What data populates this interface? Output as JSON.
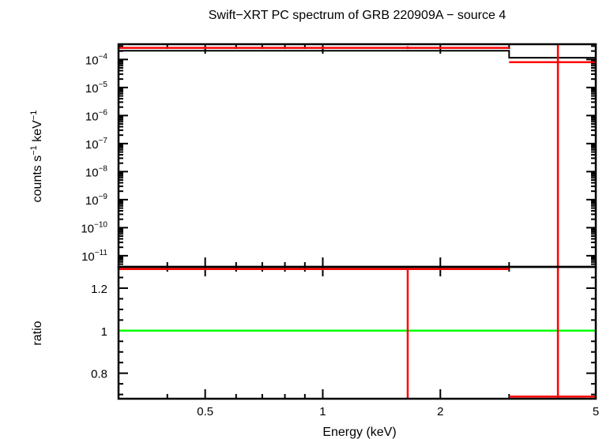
{
  "chart_data": {
    "type": "line",
    "title": "Swift−XRT PC spectrum of GRB 220909A − source 4",
    "xlabel": "Energy (keV)",
    "x_scale": "log",
    "xlim": [
      0.3,
      5
    ],
    "x_ticks": [
      "0.5",
      "1",
      "2",
      "5"
    ],
    "panels": [
      {
        "id": "spectrum",
        "ylabel_parts": [
          "counts s",
          "−1",
          " keV",
          "−1"
        ],
        "y_scale": "log",
        "ylim": [
          4e-12,
          0.00035
        ],
        "y_ticks": [
          {
            "value": 0.0001,
            "base": "10",
            "exp": "−4"
          },
          {
            "value": 1e-05,
            "base": "10",
            "exp": "−5"
          },
          {
            "value": 1e-06,
            "base": "10",
            "exp": "−6"
          },
          {
            "value": 1e-07,
            "base": "10",
            "exp": "−7"
          },
          {
            "value": 1e-08,
            "base": "10",
            "exp": "−8"
          },
          {
            "value": 1e-09,
            "base": "10",
            "exp": "−9"
          },
          {
            "value": 1e-10,
            "base": "10",
            "exp": "−10"
          },
          {
            "value": 1e-11,
            "base": "10",
            "exp": "−11"
          }
        ],
        "data": [
          {
            "x_lo": 0.3,
            "x_hi": 3.0,
            "x": 1.65,
            "y": 0.00026,
            "y_lo": 0.000235,
            "y_hi": 0.000295,
            "color": "#ff0000"
          },
          {
            "x_lo": 3.0,
            "x_hi": 5.0,
            "x": 4.0,
            "y": 8e-05,
            "y_lo": 4e-12,
            "y_hi": 0.00035,
            "color": "#ff0000"
          }
        ],
        "model": {
          "edges": [
            0.3,
            3.0,
            5.0
          ],
          "values": [
            0.000205,
            0.000115
          ],
          "color": "#000000"
        }
      },
      {
        "id": "ratio",
        "ylabel": "ratio",
        "y_scale": "linear",
        "ylim": [
          0.68,
          1.3
        ],
        "y_ticks": [
          {
            "value": 0.8,
            "label": "0.8"
          },
          {
            "value": 1.0,
            "label": "1"
          },
          {
            "value": 1.2,
            "label": "1.2"
          }
        ],
        "reference_line": {
          "y": 1.0,
          "color": "#00ff00"
        },
        "data": [
          {
            "x_lo": 0.3,
            "x_hi": 3.0,
            "x": 1.65,
            "y": 1.29,
            "y_lo": 0.68,
            "y_hi": 1.3,
            "color": "#ff0000"
          },
          {
            "x_lo": 3.0,
            "x_hi": 5.0,
            "x": 4.0,
            "y": 0.69,
            "y_lo": 0.68,
            "y_hi": 1.3,
            "color": "#ff0000"
          }
        ]
      }
    ]
  }
}
